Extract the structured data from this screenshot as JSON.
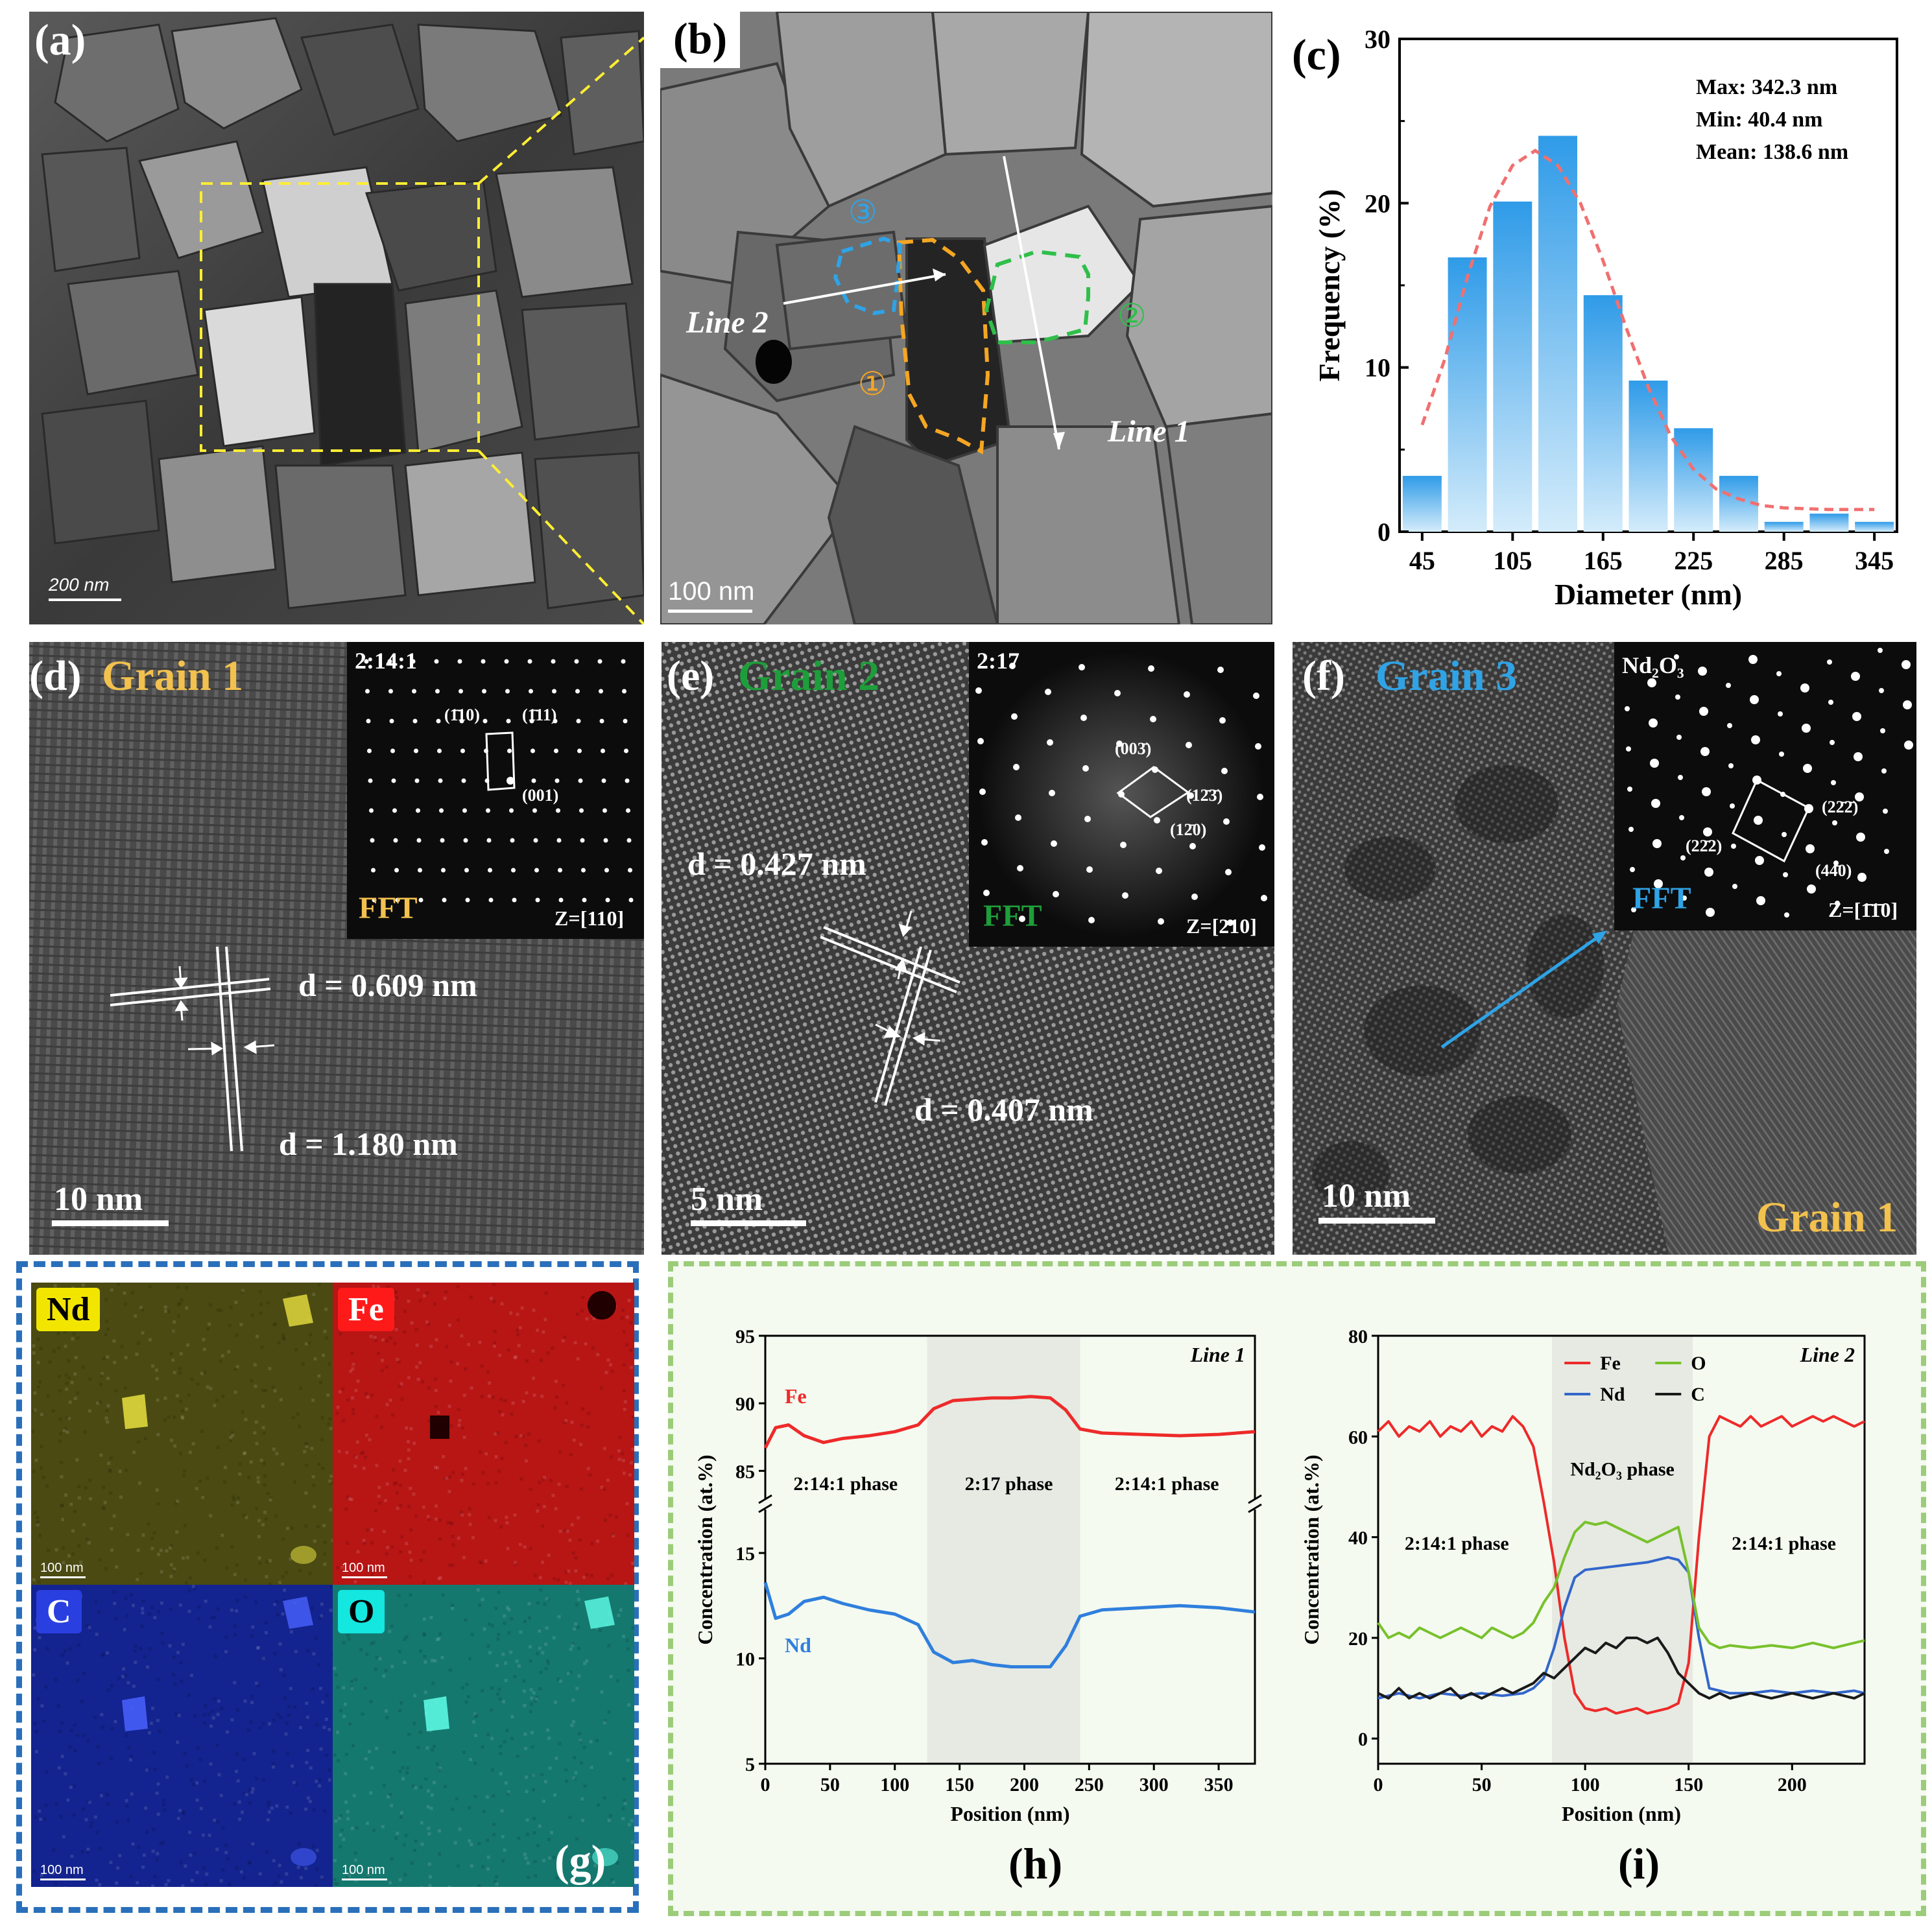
{
  "panels": {
    "a": {
      "label": "(a)",
      "scale_bar": "200 nm"
    },
    "b": {
      "label": "(b)",
      "scale_bar": "100 nm",
      "line1": "Line 1",
      "line2": "Line 2",
      "markers": [
        "①",
        "②",
        "③"
      ]
    },
    "d": {
      "label": "(d)",
      "title": "Grain 1",
      "scale_bar": "10 nm",
      "d1": "d = 0.609 nm",
      "d2": "d = 1.180 nm",
      "inset": {
        "phase": "2:14:1",
        "fft": "FFT",
        "zone": "Z=[110]",
        "spots": [
          "(1̄10)",
          "(1̄11)",
          "(001)"
        ]
      }
    },
    "e": {
      "label": "(e)",
      "title": "Grain 2",
      "scale_bar": "5 nm",
      "d1": "d = 0.427 nm",
      "d2": "d = 0.407 nm",
      "inset": {
        "phase": "2:17",
        "fft": "FFT",
        "zone": "Z=[210]",
        "spots": [
          "(003̄)",
          "(12̄3̄)",
          "(12̄0)"
        ]
      }
    },
    "f": {
      "label": "(f)",
      "title": "Grain 3",
      "scale_bar": "10 nm",
      "bottom_label": "Grain 1",
      "inset": {
        "phase": "Nd₂O₃",
        "fft": "FFT",
        "zone": "Z=[1̄1̄0]",
        "spots": [
          "(22̄2̄)",
          "(22̄2)",
          "(44̄0)"
        ]
      }
    },
    "g": {
      "label": "(g)",
      "maps": [
        {
          "element": "Nd",
          "scale": "100 nm",
          "color": "#4a4a12",
          "tag_bg": "#f2e600"
        },
        {
          "element": "Fe",
          "scale": "100 nm",
          "color": "#b81515",
          "tag_bg": "#ff1a1a"
        },
        {
          "element": "C",
          "scale": "100 nm",
          "color": "#13238f",
          "tag_bg": "#2a3fe0"
        },
        {
          "element": "O",
          "scale": "100 nm",
          "color": "#14786f",
          "tag_bg": "#14e6e0"
        }
      ]
    },
    "h": {
      "label": "(h)"
    },
    "i": {
      "label": "(i)"
    }
  },
  "chart_data": [
    {
      "id": "c",
      "type": "bar",
      "label": "(c)",
      "categories": [
        "45",
        "75",
        "105",
        "135",
        "165",
        "195",
        "225",
        "255",
        "285",
        "315",
        "345"
      ],
      "values": [
        3.4,
        16.7,
        20.1,
        24.1,
        14.4,
        9.2,
        6.3,
        3.4,
        0.6,
        1.1,
        0.6
      ],
      "xlabel": "Diameter (nm)",
      "ylabel": "Frequency (%)",
      "ylim": [
        0,
        30
      ],
      "yticks": [
        "0",
        "10",
        "20",
        "30"
      ],
      "xticks": [
        "45",
        "105",
        "165",
        "225",
        "285",
        "345"
      ],
      "fit_curve": [
        [
          45,
          6.5
        ],
        [
          60,
          10.5
        ],
        [
          75,
          15.5
        ],
        [
          90,
          19.8
        ],
        [
          105,
          22.3
        ],
        [
          120,
          23.2
        ],
        [
          135,
          22.3
        ],
        [
          150,
          20.0
        ],
        [
          165,
          16.5
        ],
        [
          180,
          12.5
        ],
        [
          195,
          8.8
        ],
        [
          210,
          5.8
        ],
        [
          225,
          3.8
        ],
        [
          240,
          2.6
        ],
        [
          255,
          2.0
        ],
        [
          270,
          1.6
        ],
        [
          285,
          1.45
        ],
        [
          300,
          1.4
        ],
        [
          315,
          1.35
        ],
        [
          330,
          1.35
        ],
        [
          345,
          1.35
        ]
      ],
      "stats": [
        "Max: 342.3 nm",
        "Min: 40.4 nm",
        "Mean: 138.6 nm"
      ]
    },
    {
      "id": "h",
      "type": "line",
      "title": "Line 1",
      "xlabel": "Position (nm)",
      "ylabel": "Concentration (at.%)",
      "xlim": [
        0,
        378
      ],
      "xticks": [
        "0",
        "50",
        "100",
        "150",
        "200",
        "250",
        "300",
        "350"
      ],
      "upper_ylim": [
        83,
        95
      ],
      "upper_yticks": [
        "85",
        "90",
        "95"
      ],
      "lower_ylim": [
        5,
        17
      ],
      "lower_yticks": [
        "5",
        "10",
        "15"
      ],
      "regions": [
        {
          "from": 125,
          "to": 243,
          "label": "2:17 phase"
        }
      ],
      "phase_labels": [
        {
          "x": 62,
          "text": "2:14:1 phase"
        },
        {
          "x": 188,
          "text": "2:17 phase"
        },
        {
          "x": 310,
          "text": "2:14:1 phase"
        }
      ],
      "series": [
        {
          "name": "Fe",
          "color": "#ee2a2a",
          "axis": "upper",
          "x": [
            0,
            8,
            18,
            30,
            45,
            60,
            80,
            100,
            118,
            130,
            145,
            160,
            175,
            190,
            205,
            220,
            232,
            243,
            260,
            290,
            320,
            350,
            378
          ],
          "y": [
            86.7,
            88.2,
            88.4,
            87.6,
            87.1,
            87.4,
            87.6,
            87.9,
            88.4,
            89.6,
            90.2,
            90.3,
            90.4,
            90.4,
            90.5,
            90.4,
            89.5,
            88.1,
            87.8,
            87.7,
            87.6,
            87.7,
            87.9
          ]
        },
        {
          "name": "Nd",
          "color": "#2f7fdd",
          "axis": "lower",
          "x": [
            0,
            8,
            18,
            30,
            45,
            60,
            80,
            100,
            118,
            130,
            145,
            160,
            175,
            190,
            205,
            220,
            232,
            243,
            260,
            290,
            320,
            350,
            378
          ],
          "y": [
            13.6,
            11.9,
            12.1,
            12.7,
            12.9,
            12.6,
            12.3,
            12.1,
            11.6,
            10.3,
            9.8,
            9.9,
            9.7,
            9.6,
            9.6,
            9.6,
            10.6,
            12.0,
            12.3,
            12.4,
            12.5,
            12.4,
            12.2
          ]
        }
      ]
    },
    {
      "id": "i",
      "type": "line",
      "title": "Line 2",
      "xlabel": "Position (nm)",
      "ylabel": "Concentration (at.%)",
      "xlim": [
        0,
        235
      ],
      "ylim": [
        -5,
        80
      ],
      "xticks": [
        "0",
        "50",
        "100",
        "150",
        "200"
      ],
      "yticks": [
        "0",
        "20",
        "40",
        "60",
        "80"
      ],
      "regions": [
        {
          "from": 84,
          "to": 152,
          "label": "Nd₂O₃ phase"
        }
      ],
      "phase_labels": [
        {
          "x": 38,
          "y": 37.5,
          "text": "2:14:1 phase"
        },
        {
          "x": 196,
          "y": 37.5,
          "text": "2:14:1 phase"
        }
      ],
      "series": [
        {
          "name": "Fe",
          "color": "#ee2a2a",
          "x": [
            0,
            5,
            10,
            15,
            20,
            25,
            30,
            35,
            40,
            45,
            50,
            55,
            60,
            65,
            70,
            75,
            80,
            85,
            90,
            95,
            100,
            105,
            110,
            115,
            120,
            125,
            130,
            135,
            140,
            145,
            150,
            155,
            160,
            165,
            170,
            175,
            180,
            185,
            190,
            195,
            200,
            205,
            210,
            215,
            220,
            225,
            230,
            235
          ],
          "y": [
            61,
            63,
            60,
            62,
            61,
            63,
            60,
            62,
            61,
            63,
            60,
            62,
            61,
            64,
            62,
            58,
            47,
            35,
            20,
            9,
            6,
            5.5,
            6,
            5,
            5.5,
            6,
            5,
            5.5,
            6,
            7,
            15,
            40,
            60,
            64,
            63,
            62,
            64,
            62,
            63,
            64,
            62,
            63,
            64,
            63,
            64,
            63,
            62,
            63
          ]
        },
        {
          "name": "Nd",
          "color": "#3366cc",
          "x": [
            0,
            10,
            20,
            30,
            40,
            50,
            60,
            70,
            75,
            80,
            85,
            90,
            95,
            100,
            110,
            120,
            130,
            140,
            145,
            150,
            155,
            160,
            170,
            180,
            190,
            200,
            210,
            220,
            230,
            235
          ],
          "y": [
            8,
            9,
            8,
            9,
            8.5,
            9,
            8.5,
            9,
            10,
            12,
            18,
            26,
            32,
            33.5,
            34,
            34.5,
            35,
            36,
            35.5,
            33,
            20,
            10,
            9,
            9,
            9.5,
            9,
            9.5,
            9,
            9.5,
            9
          ]
        },
        {
          "name": "O",
          "color": "#78c12b",
          "x": [
            0,
            5,
            10,
            15,
            20,
            25,
            30,
            35,
            40,
            45,
            50,
            55,
            60,
            65,
            70,
            75,
            80,
            85,
            90,
            95,
            100,
            105,
            110,
            115,
            120,
            125,
            130,
            135,
            140,
            145,
            150,
            155,
            160,
            165,
            170,
            180,
            190,
            200,
            210,
            220,
            230,
            235
          ],
          "y": [
            23,
            20,
            21,
            20,
            22,
            21,
            20,
            21,
            22,
            21,
            20,
            22,
            21,
            20,
            21,
            23,
            27,
            30,
            36,
            41,
            43,
            42.5,
            43,
            42,
            41,
            40,
            39,
            40,
            41,
            42,
            33,
            22,
            19,
            18,
            18.5,
            18,
            18.5,
            18,
            19,
            18,
            19,
            19.5
          ]
        },
        {
          "name": "C",
          "color": "#1a1a1a",
          "x": [
            0,
            5,
            10,
            15,
            20,
            25,
            30,
            35,
            40,
            45,
            50,
            55,
            60,
            65,
            70,
            75,
            80,
            85,
            90,
            95,
            100,
            105,
            110,
            115,
            120,
            125,
            130,
            135,
            140,
            145,
            150,
            155,
            160,
            165,
            170,
            180,
            190,
            200,
            210,
            220,
            230,
            235
          ],
          "y": [
            9,
            8,
            10,
            8,
            9,
            8,
            9,
            10,
            8,
            9,
            8,
            9,
            10,
            9,
            10,
            11,
            13,
            12,
            14,
            16,
            18,
            17,
            19,
            18,
            20,
            20,
            19,
            20,
            17,
            13,
            11,
            9,
            8,
            9,
            8,
            9,
            8,
            9,
            8,
            9,
            8,
            9
          ]
        }
      ],
      "legend": [
        "Fe",
        "O",
        "Nd",
        "C"
      ]
    }
  ]
}
